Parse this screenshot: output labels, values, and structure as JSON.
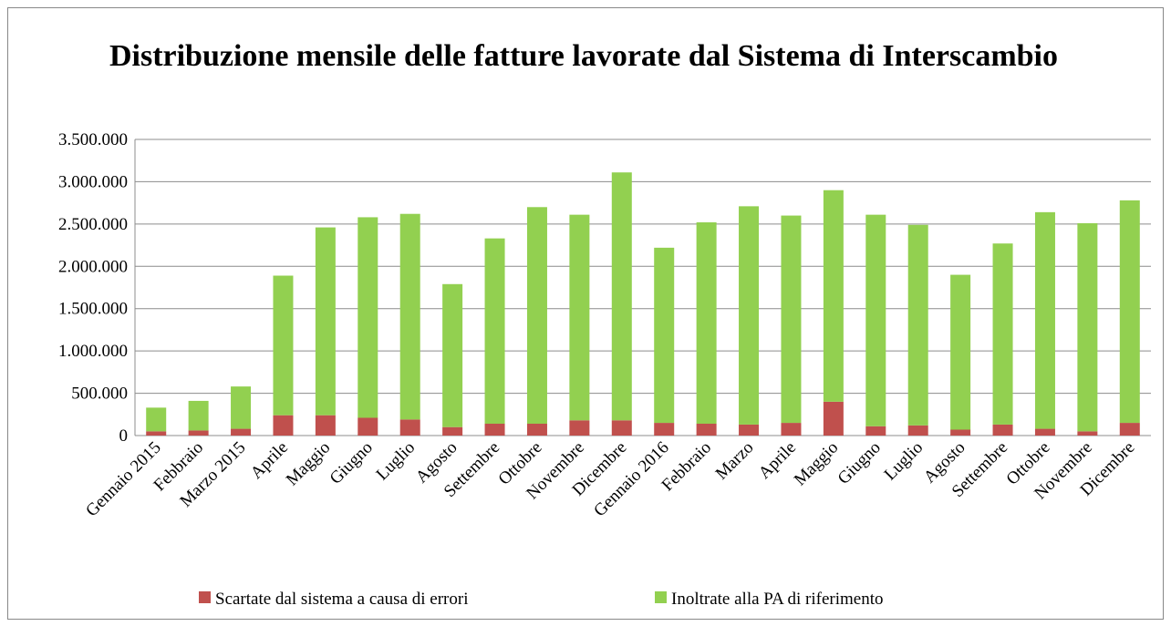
{
  "chart_data": {
    "type": "stacked-bar",
    "title": "Distribuzione mensile delle fatture lavorate dal Sistema di Interscambio",
    "categories": [
      "Gennaio 2015",
      "Febbraio",
      "Marzo 2015",
      "Aprile",
      "Maggio",
      "Giugno",
      "Luglio",
      "Agosto",
      "Settembre",
      "Ottobre",
      "Novembre",
      "Dicembre",
      "Gennaio 2016",
      "Febbraio",
      "Marzo",
      "Aprile",
      "Maggio",
      "Giugno",
      "Luglio",
      "Agosto",
      "Settembre",
      "Ottobre",
      "Novembre",
      "Dicembre"
    ],
    "series": [
      {
        "name": "Scartate dal sistema a causa di errori",
        "color": "#c0504d",
        "values": [
          50000,
          60000,
          80000,
          240000,
          240000,
          210000,
          190000,
          100000,
          140000,
          140000,
          180000,
          180000,
          150000,
          140000,
          130000,
          150000,
          400000,
          110000,
          120000,
          70000,
          130000,
          80000,
          50000,
          150000
        ]
      },
      {
        "name": "Inoltrate alla PA di riferimento",
        "color": "#92d050",
        "values": [
          280000,
          350000,
          500000,
          1650000,
          2220000,
          2370000,
          2430000,
          1690000,
          2190000,
          2560000,
          2430000,
          2930000,
          2070000,
          2380000,
          2580000,
          2450000,
          2500000,
          2500000,
          2370000,
          1830000,
          2140000,
          2560000,
          2460000,
          2630000
        ]
      }
    ],
    "ylim": [
      0,
      3500000
    ],
    "yticks": [
      0,
      {
        "value": 500000,
        "label": "500.000"
      },
      {
        "value": 1000000,
        "label": "1.000.000"
      },
      {
        "value": 1500000,
        "label": "1.500.000"
      },
      {
        "value": 2000000,
        "label": "2.000.000"
      },
      {
        "value": 2500000,
        "label": "2.500.000"
      },
      {
        "value": 3000000,
        "label": "3.000.000"
      },
      {
        "value": 3500000,
        "label": "3.500.000"
      }
    ],
    "grid": true,
    "legend": "bottom"
  }
}
